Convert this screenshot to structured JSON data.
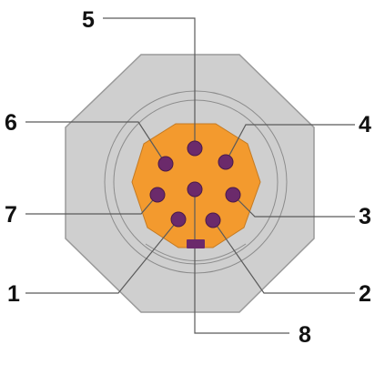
{
  "colors": {
    "background": "#ffffff",
    "housing_fill": "#cfcfcf",
    "housing_stroke": "#9a9a9a",
    "ring_stroke": "#8c8c8c",
    "insert_fill": "#f39a2e",
    "insert_stroke": "#c47a22",
    "pin_fill": "#6b2a6b",
    "pin_stroke": "#4a1a4a",
    "leader_line": "#5a5a5a",
    "label_text": "#111111"
  },
  "pins": [
    {
      "id": "1",
      "label": "1"
    },
    {
      "id": "2",
      "label": "2"
    },
    {
      "id": "3",
      "label": "3"
    },
    {
      "id": "4",
      "label": "4"
    },
    {
      "id": "5",
      "label": "5"
    },
    {
      "id": "6",
      "label": "6"
    },
    {
      "id": "7",
      "label": "7"
    },
    {
      "id": "8",
      "label": "8"
    }
  ]
}
